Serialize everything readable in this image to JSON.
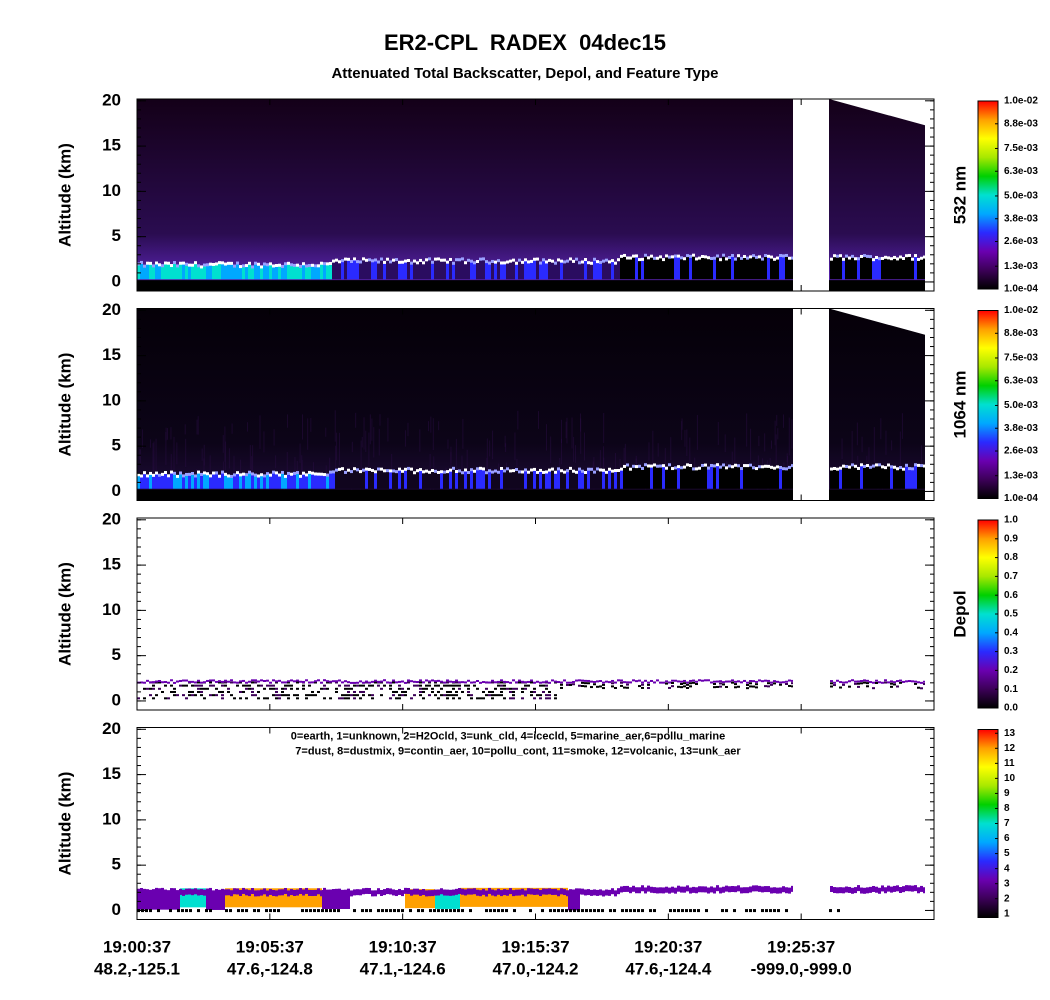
{
  "title": "ER2-CPL  RADEX  04dec15",
  "subtitle": "Attenuated Total Backscatter, Depol, and Feature Type",
  "x_axis": {
    "categories": [
      "19:00:37",
      "19:05:37",
      "19:10:37",
      "19:15:37",
      "19:20:37",
      "19:25:37",
      null
    ],
    "sublabels": [
      "48.2,-125.1",
      "47.6,-124.8",
      "47.1,-124.6",
      "47.0,-124.2",
      "47.6,-124.4",
      "-999.0,-999.0",
      null
    ]
  },
  "chart_data": [
    {
      "type": "curtain",
      "ylabel": "Altitude (km)",
      "ylim": [
        -1,
        20.2
      ],
      "yticks": [
        0,
        5,
        10,
        15,
        20
      ],
      "colorbar": {
        "label": "532 nm",
        "lim": [
          0.0001,
          0.01
        ],
        "ticks": [
          {
            "value": 0.01,
            "label": "1.0e-02"
          },
          {
            "value": 0.0088,
            "label": "8.8e-03"
          },
          {
            "value": 0.0075,
            "label": "7.5e-03"
          },
          {
            "value": 0.0063,
            "label": "6.3e-03"
          },
          {
            "value": 0.005,
            "label": "5.0e-03"
          },
          {
            "value": 0.0038,
            "label": "3.8e-03"
          },
          {
            "value": 0.0026,
            "label": "2.6e-03"
          },
          {
            "value": 0.0013,
            "label": "1.3e-03"
          },
          {
            "value": 0.0001,
            "label": "1.0e-04"
          }
        ],
        "colors": [
          "#000000",
          "#3c0058",
          "#6a00b0",
          "#2a2aff",
          "#00a8ff",
          "#00e0d0",
          "#00d000",
          "#a8e800",
          "#ffff00",
          "#ffa000",
          "#ff0000"
        ]
      }
    },
    {
      "type": "curtain",
      "ylabel": "Altitude (km)",
      "ylim": [
        -1,
        20.2
      ],
      "yticks": [
        0,
        5,
        10,
        15,
        20
      ],
      "colorbar": {
        "label": "1064 nm",
        "lim": [
          0.0001,
          0.01
        ],
        "ticks": [
          {
            "value": 0.01,
            "label": "1.0e-02"
          },
          {
            "value": 0.0088,
            "label": "8.8e-03"
          },
          {
            "value": 0.0075,
            "label": "7.5e-03"
          },
          {
            "value": 0.0063,
            "label": "6.3e-03"
          },
          {
            "value": 0.005,
            "label": "5.0e-03"
          },
          {
            "value": 0.0038,
            "label": "3.8e-03"
          },
          {
            "value": 0.0026,
            "label": "2.6e-03"
          },
          {
            "value": 0.0013,
            "label": "1.3e-03"
          },
          {
            "value": 0.0001,
            "label": "1.0e-04"
          }
        ],
        "colors": [
          "#000000",
          "#3c0058",
          "#6a00b0",
          "#2a2aff",
          "#00a8ff",
          "#00e0d0",
          "#00d000",
          "#a8e800",
          "#ffff00",
          "#ffa000",
          "#ff0000"
        ]
      }
    },
    {
      "type": "curtain",
      "ylabel": "Altitude (km)",
      "ylim": [
        -1,
        20.2
      ],
      "yticks": [
        0,
        5,
        10,
        15,
        20
      ],
      "colorbar": {
        "label": "Depol",
        "lim": [
          0,
          1
        ],
        "ticks": [
          {
            "value": 1,
            "label": "1.0"
          },
          0.9,
          0.8,
          0.7,
          0.6,
          0.5,
          0.4,
          0.3,
          0.2,
          0.1,
          {
            "value": 0,
            "label": "0.0"
          }
        ],
        "colors": [
          "#000000",
          "#3c0058",
          "#6a00b0",
          "#2a2aff",
          "#00a8ff",
          "#00e0d0",
          "#00d000",
          "#a8e800",
          "#ffff00",
          "#ffa000",
          "#ff0000"
        ]
      }
    },
    {
      "type": "curtain",
      "ylabel": "Altitude (km)",
      "ylim": [
        -1,
        20.2
      ],
      "yticks": [
        0,
        5,
        10,
        15,
        20
      ],
      "legend_text": [
        "0=earth, 1=unknown, 2=H2Ocld, 3=unk_cld, 4=icecld, 5=marine_aer,6=pollu_marine",
        "7=dust, 8=dustmix, 9=contin_aer, 10=pollu_cont, 11=smoke, 12=volcanic, 13=unk_aer"
      ],
      "colorbar": {
        "lim": [
          0.75,
          13.25
        ],
        "ticks": [
          13,
          12,
          11,
          10,
          9,
          8,
          7,
          6,
          5,
          4,
          3,
          2,
          1
        ],
        "colors": [
          "#000000",
          "#3c0058",
          "#6a00b0",
          "#2a2aff",
          "#00a8ff",
          "#00e0d0",
          "#00d000",
          "#a8e800",
          "#ffff00",
          "#ffa000",
          "#ff0000"
        ]
      }
    }
  ]
}
